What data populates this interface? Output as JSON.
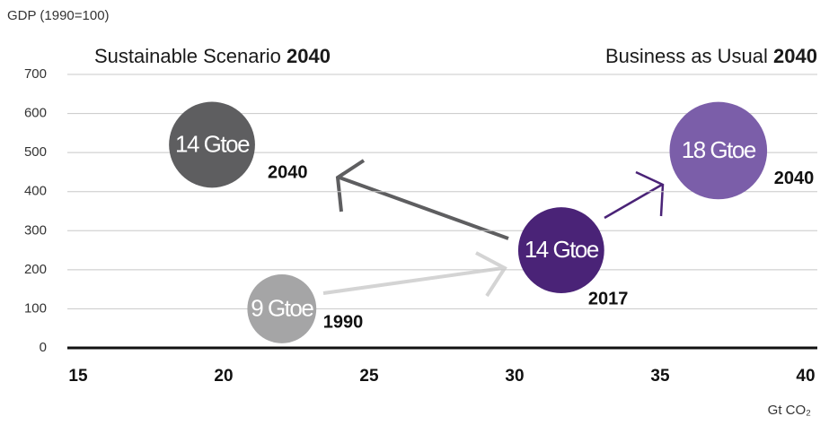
{
  "chart_data": {
    "type": "bubble",
    "y_label": "GDP (1990=100)",
    "x_label": "Gt CO₂",
    "annotations": [
      {
        "text": "Sustainable Scenario",
        "bold": "2040"
      },
      {
        "text": "Business as Usual",
        "bold": "2040"
      }
    ],
    "xlim": [
      15,
      40
    ],
    "xticks": [
      15,
      20,
      25,
      30,
      35,
      40
    ],
    "ylim": [
      0,
      700
    ],
    "yticks": [
      0,
      100,
      200,
      300,
      400,
      500,
      600,
      700
    ],
    "grid": true,
    "series": [
      {
        "labels": [
          "1990",
          "2017",
          "2040",
          "2040"
        ],
        "x": [
          22.0,
          31.6,
          19.6,
          37.0
        ],
        "values": [
          100,
          250,
          520,
          505
        ],
        "sizes": [
          9,
          14,
          14,
          18
        ],
        "value_labels": [
          "9 Gtoe",
          "14 Gtoe",
          "14 Gtoe",
          "18 Gtoe"
        ],
        "colors": [
          "#a5a5a6",
          "#4a2377",
          "#5e5e60",
          "#7b5ea9"
        ]
      }
    ]
  }
}
